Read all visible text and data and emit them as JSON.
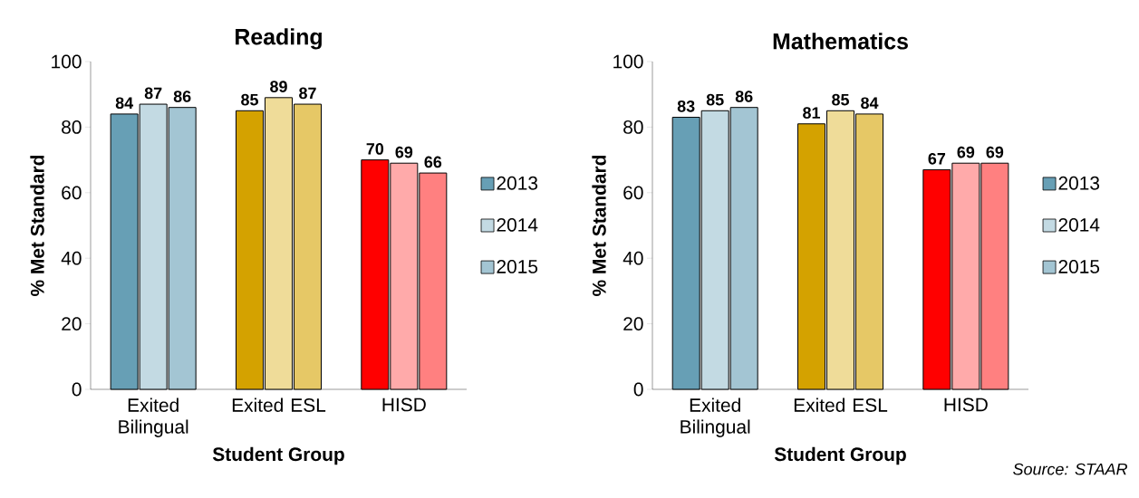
{
  "chart_data": [
    {
      "type": "bar",
      "title": "Reading",
      "xlabel": "Student Group",
      "ylabel": "% Met Standard",
      "categories": [
        "Exited Bilingual",
        "Exited ESL",
        "HISD"
      ],
      "series": [
        {
          "name": "2013",
          "colors": [
            "#679fb5",
            "#d4a200",
            "#ff0000"
          ],
          "values": [
            84,
            85,
            70
          ]
        },
        {
          "name": "2014",
          "colors": [
            "#c3dae3",
            "#efdc99",
            "#ffaaaa"
          ],
          "values": [
            87,
            89,
            69
          ]
        },
        {
          "name": "2015",
          "colors": [
            "#a3c5d3",
            "#e6c866",
            "#ff8080"
          ],
          "values": [
            86,
            87,
            66
          ]
        }
      ],
      "ylim": [
        0,
        100
      ],
      "yticks": [
        0,
        20,
        40,
        60,
        80,
        100
      ],
      "data_labels": true,
      "legend": "right"
    },
    {
      "type": "bar",
      "title": "Mathematics",
      "xlabel": "Student Group",
      "ylabel": "% Met Standard",
      "categories": [
        "Exited Bilingual",
        "Exited ESL",
        "HISD"
      ],
      "series": [
        {
          "name": "2013",
          "colors": [
            "#679fb5",
            "#d4a200",
            "#ff0000"
          ],
          "values": [
            83,
            81,
            67
          ]
        },
        {
          "name": "2014",
          "colors": [
            "#c3dae3",
            "#efdc99",
            "#ffaaaa"
          ],
          "values": [
            85,
            85,
            69
          ]
        },
        {
          "name": "2015",
          "colors": [
            "#a3c5d3",
            "#e6c866",
            "#ff8080"
          ],
          "values": [
            86,
            84,
            69
          ]
        }
      ],
      "ylim": [
        0,
        100
      ],
      "yticks": [
        0,
        20,
        40,
        60,
        80,
        100
      ],
      "data_labels": true,
      "legend": "right",
      "annotations": [
        "Source: STAAR"
      ]
    }
  ]
}
